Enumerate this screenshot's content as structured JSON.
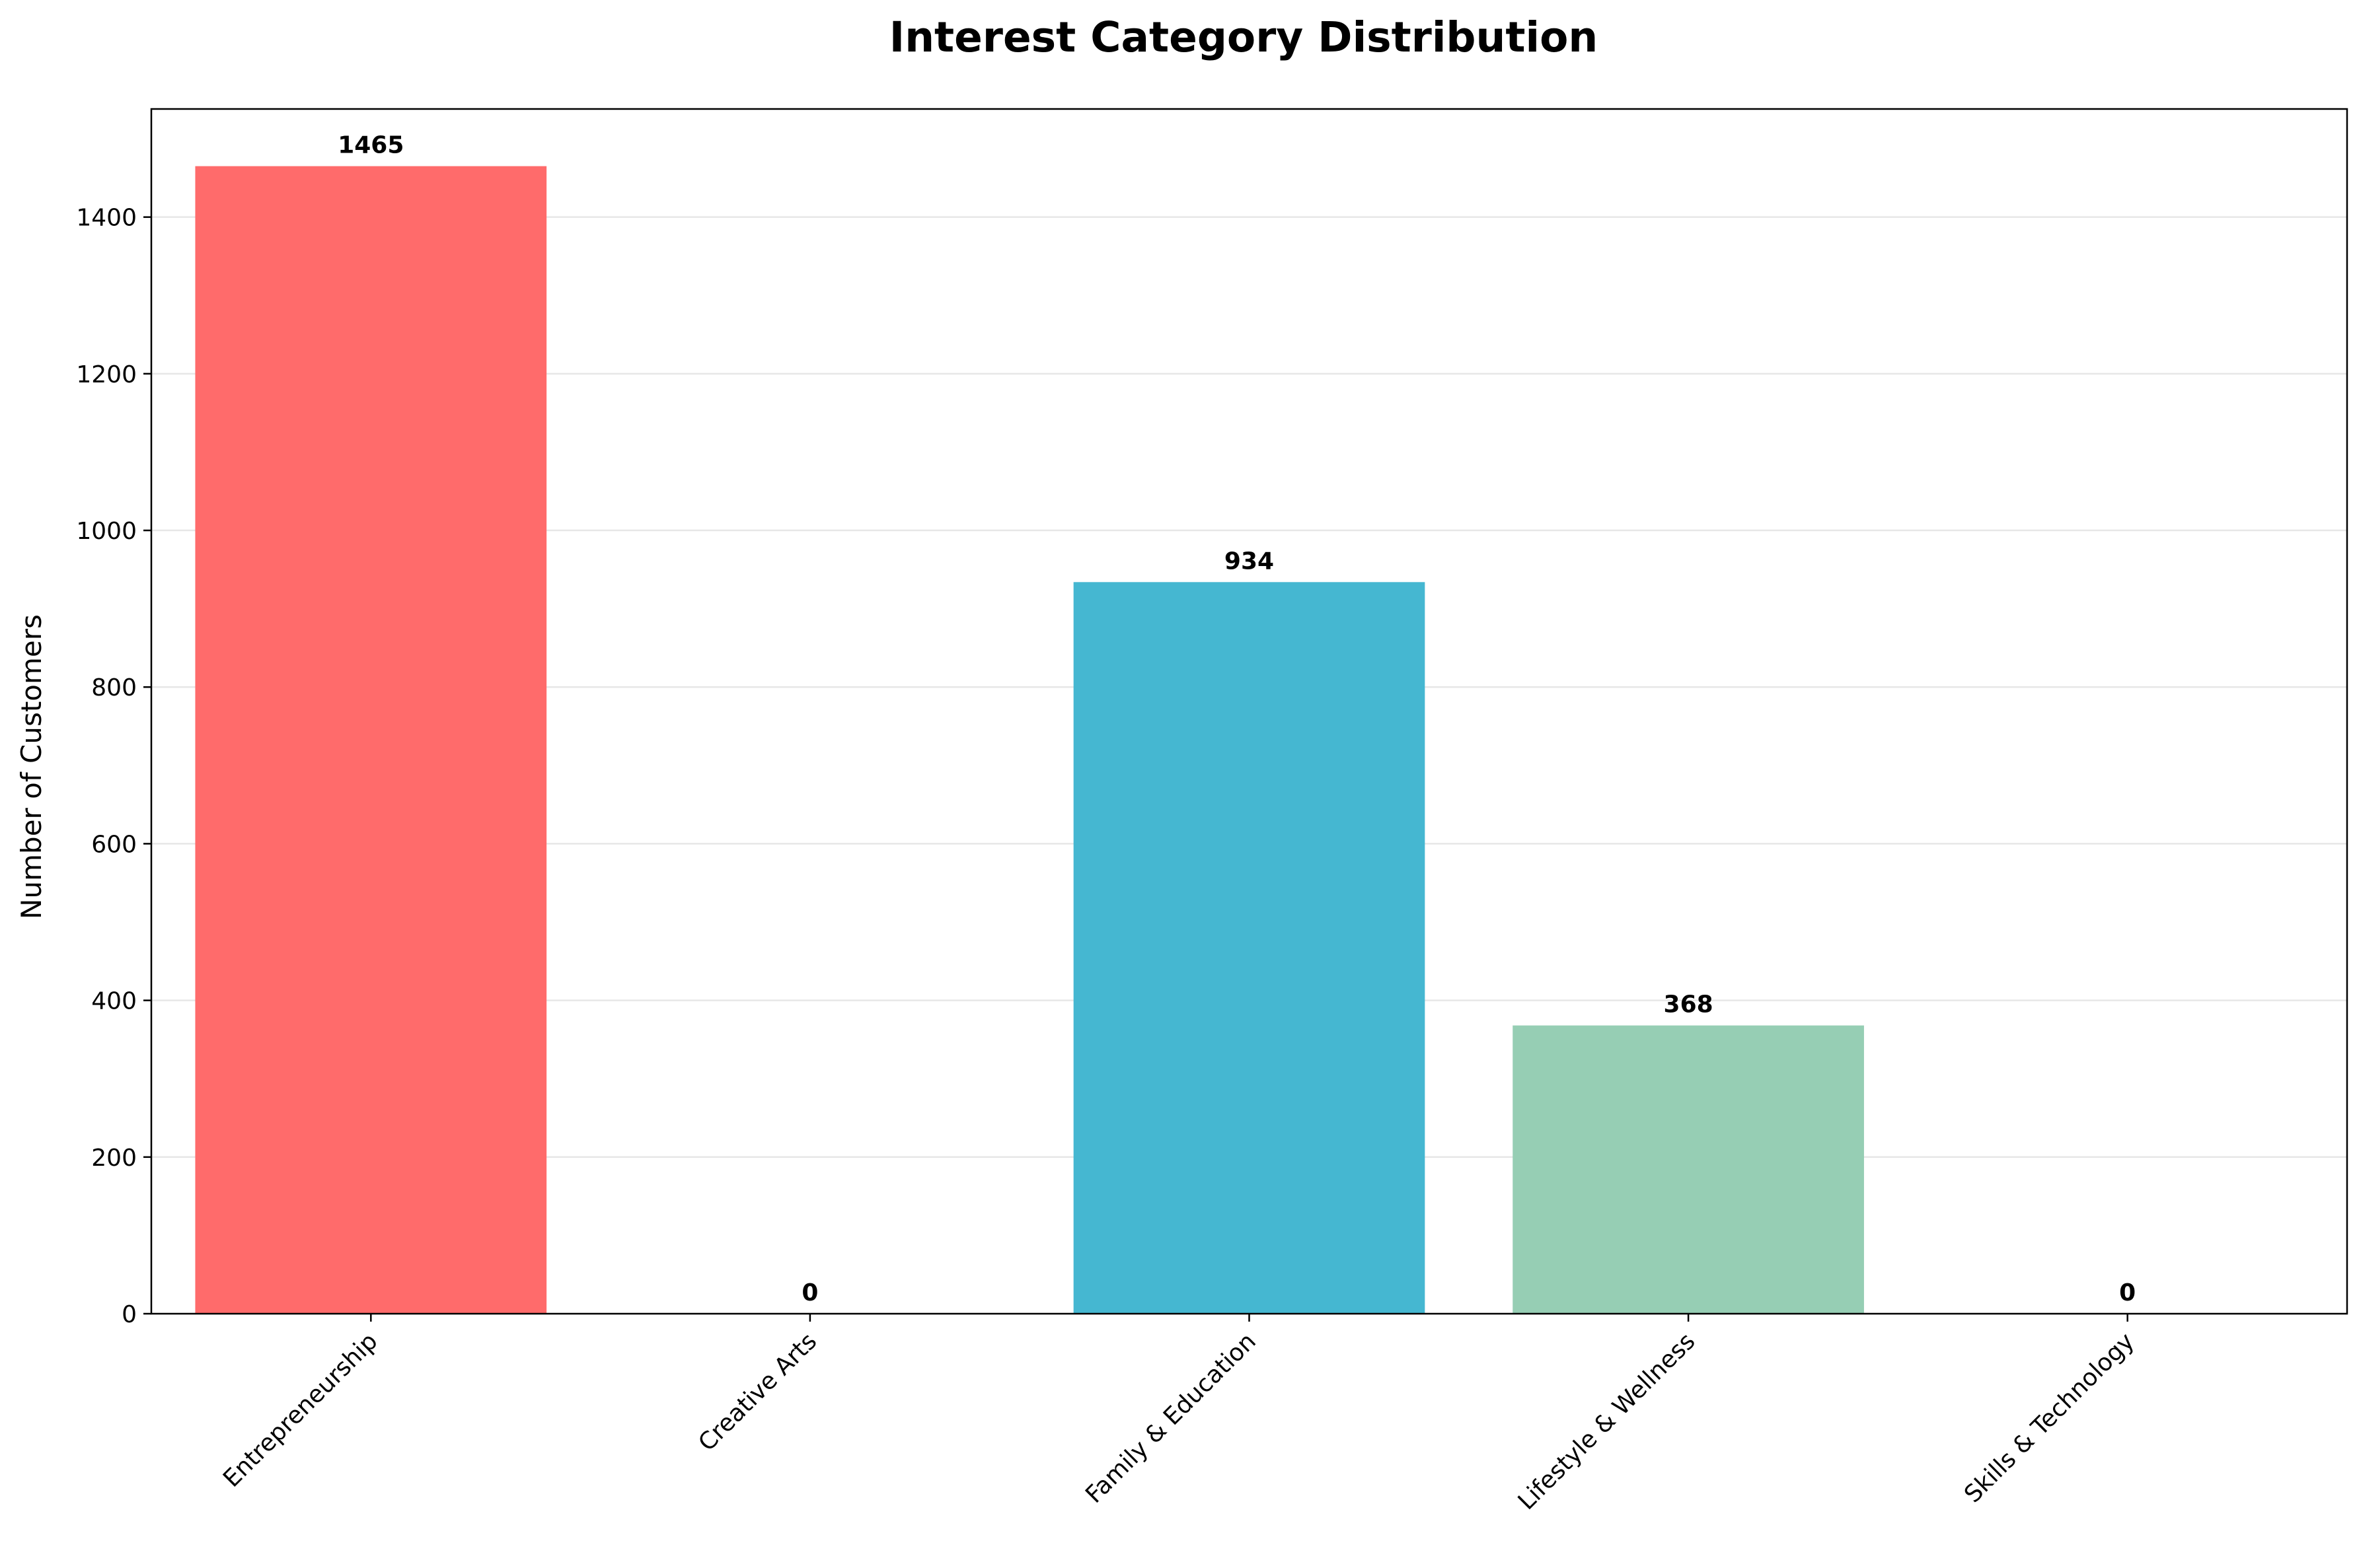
{
  "chart_data": {
    "type": "bar",
    "title": "Interest Category Distribution",
    "xlabel": "",
    "ylabel": "Number of Customers",
    "categories": [
      "Entrepreneurship",
      "Creative Arts",
      "Family & Education",
      "Lifestyle & Wellness",
      "Skills & Technology"
    ],
    "values": [
      1465,
      0,
      934,
      368,
      0
    ],
    "value_labels": [
      "1465",
      "0",
      "934",
      "368",
      "0"
    ],
    "colors": [
      "#ff6b6b",
      "#4ecdc4",
      "#45b7d1",
      "#96ceb4",
      "#ffeaa7"
    ],
    "ylim": [
      0,
      1538
    ],
    "yticks": [
      0,
      200,
      400,
      600,
      800,
      1000,
      1200,
      1400
    ],
    "ytick_labels": [
      "0",
      "200",
      "400",
      "600",
      "800",
      "1000",
      "1200",
      "1400"
    ],
    "grid": "y-axis",
    "legend": "none"
  }
}
